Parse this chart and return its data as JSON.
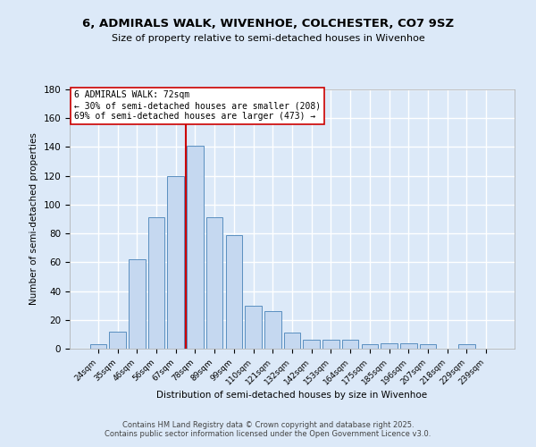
{
  "title1": "6, ADMIRALS WALK, WIVENHOE, COLCHESTER, CO7 9SZ",
  "title2": "Size of property relative to semi-detached houses in Wivenhoe",
  "xlabel": "Distribution of semi-detached houses by size in Wivenhoe",
  "ylabel": "Number of semi-detached properties",
  "categories": [
    "24sqm",
    "35sqm",
    "46sqm",
    "56sqm",
    "67sqm",
    "78sqm",
    "89sqm",
    "99sqm",
    "110sqm",
    "121sqm",
    "132sqm",
    "142sqm",
    "153sqm",
    "164sqm",
    "175sqm",
    "185sqm",
    "196sqm",
    "207sqm",
    "218sqm",
    "229sqm",
    "239sqm"
  ],
  "values": [
    3,
    12,
    62,
    91,
    120,
    141,
    91,
    79,
    30,
    26,
    11,
    6,
    6,
    6,
    3,
    4,
    4,
    3,
    0,
    3,
    0
  ],
  "bar_color": "#c5d8f0",
  "bar_edge_color": "#5a8fc0",
  "vline_x": 4.5,
  "vline_color": "#cc0000",
  "annotation_box_text": "6 ADMIRALS WALK: 72sqm\n← 30% of semi-detached houses are smaller (208)\n69% of semi-detached houses are larger (473) →",
  "bg_color": "#dce9f8",
  "plot_bg_color": "#dce9f8",
  "grid_color": "#ffffff",
  "footnote": "Contains HM Land Registry data © Crown copyright and database right 2025.\nContains public sector information licensed under the Open Government Licence v3.0.",
  "ylim": [
    0,
    180
  ],
  "yticks": [
    0,
    20,
    40,
    60,
    80,
    100,
    120,
    140,
    160,
    180
  ]
}
